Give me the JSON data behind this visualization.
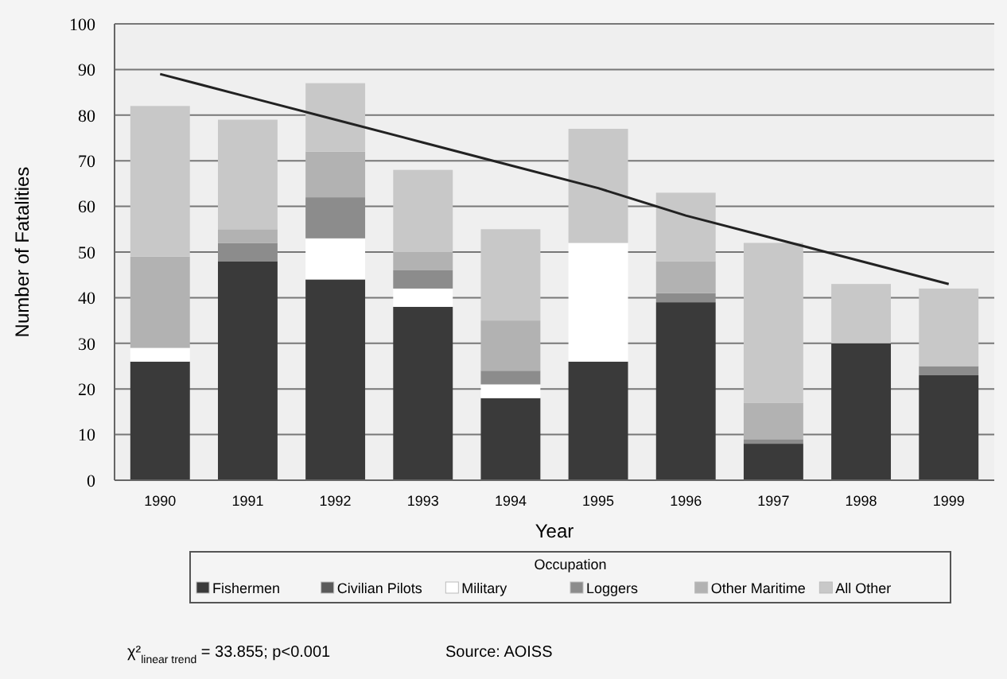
{
  "chart_data": {
    "type": "bar",
    "stacked": true,
    "xlabel": "Year",
    "ylabel": "Number of Fatalities",
    "legend_title": "Occupation",
    "legend": "bottom",
    "grid": "y",
    "categories": [
      "1990",
      "1991",
      "1992",
      "1993",
      "1994",
      "1995",
      "1996",
      "1997",
      "1998",
      "1999"
    ],
    "ylim": [
      0,
      100
    ],
    "yticks": [
      0,
      10,
      20,
      30,
      40,
      50,
      60,
      70,
      80,
      90,
      100
    ],
    "series": [
      {
        "name": "Fishermen",
        "color": "#3a3a3a",
        "values": [
          26,
          48,
          44,
          38,
          18,
          26,
          39,
          8,
          30,
          23
        ]
      },
      {
        "name": "Civilian Pilots",
        "color": "#5a5a5a",
        "values": [
          0,
          0,
          0,
          0,
          0,
          0,
          0,
          0,
          0,
          0
        ]
      },
      {
        "name": "Military",
        "color": "#ffffff",
        "values": [
          3,
          0,
          9,
          4,
          3,
          26,
          0,
          0,
          0,
          0
        ]
      },
      {
        "name": "Loggers",
        "color": "#8c8c8c",
        "values": [
          0,
          4,
          9,
          4,
          3,
          0,
          2,
          1,
          0,
          2
        ]
      },
      {
        "name": "Other Maritime",
        "color": "#b2b2b2",
        "values": [
          20,
          3,
          10,
          4,
          11,
          0,
          7,
          8,
          0,
          0
        ]
      },
      {
        "name": "All Other",
        "color": "#c8c8c8",
        "values": [
          33,
          24,
          15,
          18,
          20,
          25,
          15,
          35,
          13,
          17
        ]
      },
      {
        "type": "line",
        "color": "#222222",
        "values": [
          89,
          84,
          79,
          74,
          69,
          64,
          58,
          53,
          48,
          43
        ]
      }
    ],
    "annotations": [
      "χ²$_{linear trend}$ = 33.855; p<0.001",
      "Source: AOISS"
    ]
  }
}
